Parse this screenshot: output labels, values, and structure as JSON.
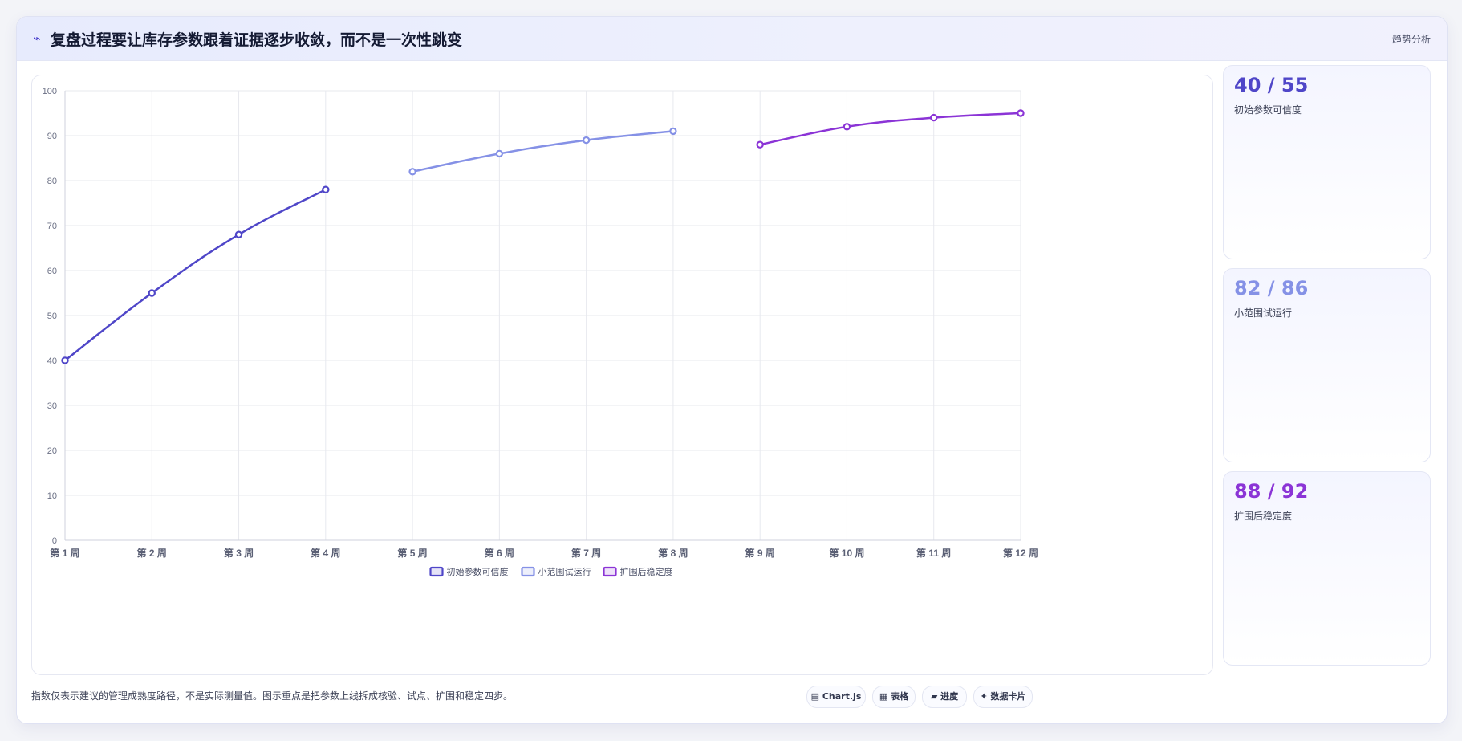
{
  "header": {
    "icon": "trend-line-icon",
    "title": "复盘过程要让库存参数跟着证据逐步收敛，而不是一次性跳变",
    "tag": "趋势分析"
  },
  "chart_data": {
    "type": "line",
    "categories": [
      "第 1 周",
      "第 2 周",
      "第 3 周",
      "第 4 周",
      "第 5 周",
      "第 6 周",
      "第 7 周",
      "第 8 周",
      "第 9 周",
      "第 10 周",
      "第 11 周",
      "第 12 周"
    ],
    "ylim": [
      0,
      100
    ],
    "yticks": [
      0,
      10,
      20,
      30,
      40,
      50,
      60,
      70,
      80,
      90,
      100
    ],
    "grid": true,
    "legend_position": "bottom",
    "series": [
      {
        "name": "初始参数可信度",
        "color": "#4f46c8",
        "values": [
          40,
          55,
          68,
          78,
          null,
          null,
          null,
          null,
          null,
          null,
          null,
          null
        ]
      },
      {
        "name": "小范围试运行",
        "color": "#8591e6",
        "values": [
          null,
          null,
          null,
          null,
          82,
          86,
          89,
          91,
          null,
          null,
          null,
          null
        ]
      },
      {
        "name": "扩围后稳定度",
        "color": "#8b34d6",
        "values": [
          null,
          null,
          null,
          null,
          null,
          null,
          null,
          null,
          88,
          92,
          94,
          95
        ]
      }
    ]
  },
  "stats": [
    {
      "value": "40 / 55",
      "label": "初始参数可信度",
      "color": "#4f46c8"
    },
    {
      "value": "82 / 86",
      "label": "小范围试运行",
      "color": "#8591e6"
    },
    {
      "value": "88 / 92",
      "label": "扩围后稳定度",
      "color": "#8b34d6"
    }
  ],
  "footer": {
    "note": "指数仅表示建议的管理成熟度路径，不是实际测量值。图示重点是把参数上线拆成核验、试点、扩围和稳定四步。",
    "pills": [
      {
        "icon": "chart-icon",
        "glyph": "▤",
        "label": "Chart.js"
      },
      {
        "icon": "table-icon",
        "glyph": "▦",
        "label": "表格"
      },
      {
        "icon": "progress-icon",
        "glyph": "▰",
        "label": "进度"
      },
      {
        "icon": "card-icon",
        "glyph": "✦",
        "label": "数据卡片"
      }
    ]
  }
}
